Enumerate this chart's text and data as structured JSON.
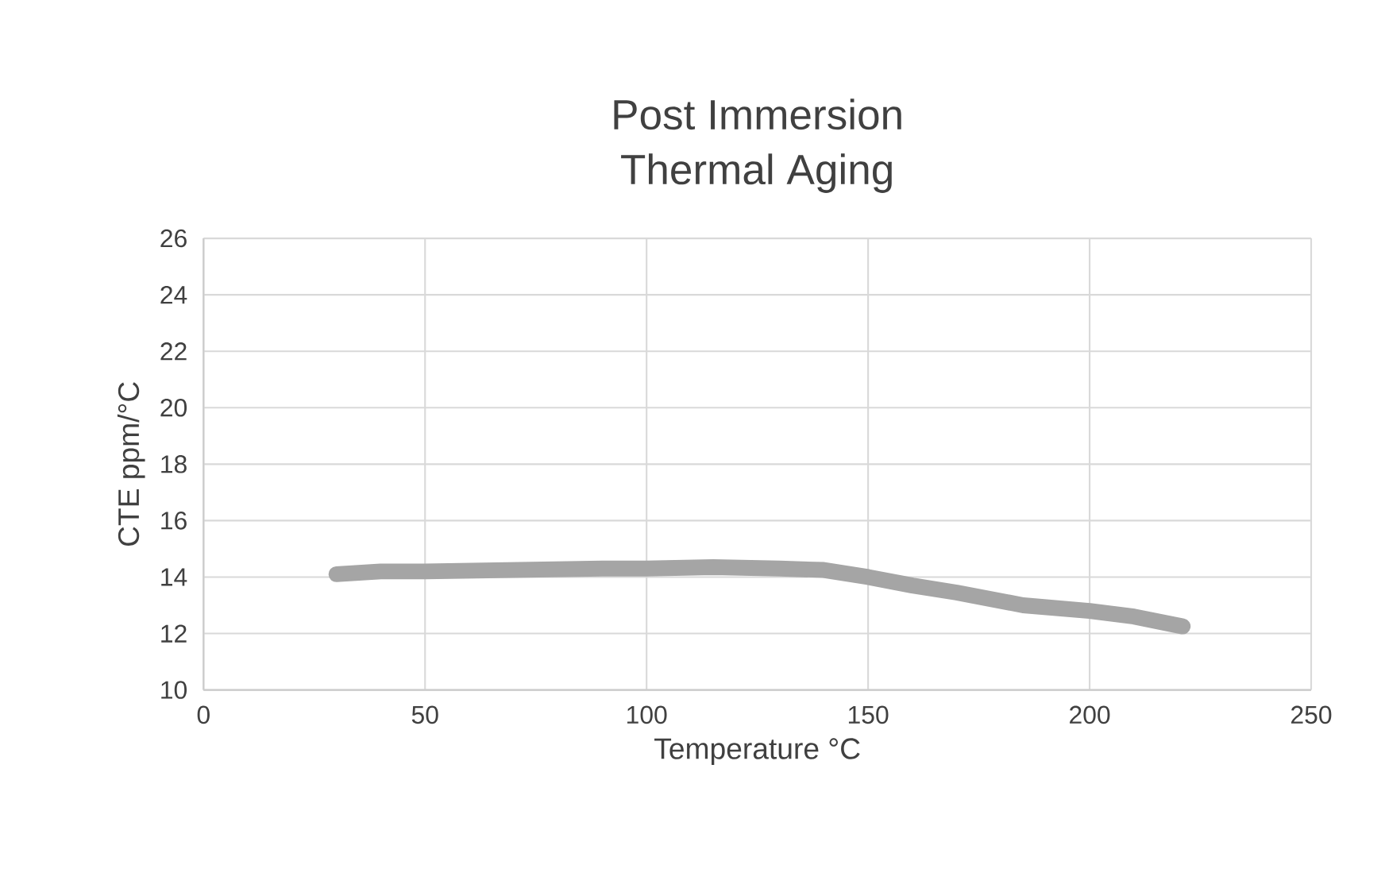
{
  "chart_data": {
    "type": "line",
    "title": "Post Immersion\nThermal Aging",
    "xlabel": "Temperature °C",
    "ylabel": "CTE ppm/°C",
    "x": [
      30,
      40,
      50,
      70,
      90,
      100,
      115,
      130,
      140,
      150,
      160,
      170,
      185,
      200,
      210,
      221
    ],
    "series": [
      {
        "color": "#a5a5a5",
        "values": [
          14.1,
          14.2,
          14.2,
          14.25,
          14.3,
          14.3,
          14.35,
          14.3,
          14.25,
          14.0,
          13.7,
          13.45,
          13.0,
          12.8,
          12.6,
          12.25
        ]
      }
    ],
    "xlim": [
      0,
      250
    ],
    "xticks": [
      0,
      50,
      100,
      150,
      200,
      250
    ],
    "ylim": [
      10,
      26
    ],
    "yticks": [
      10,
      12,
      14,
      16,
      18,
      20,
      22,
      24,
      26
    ],
    "grid": true,
    "marker": "none",
    "line_style": "solid"
  }
}
